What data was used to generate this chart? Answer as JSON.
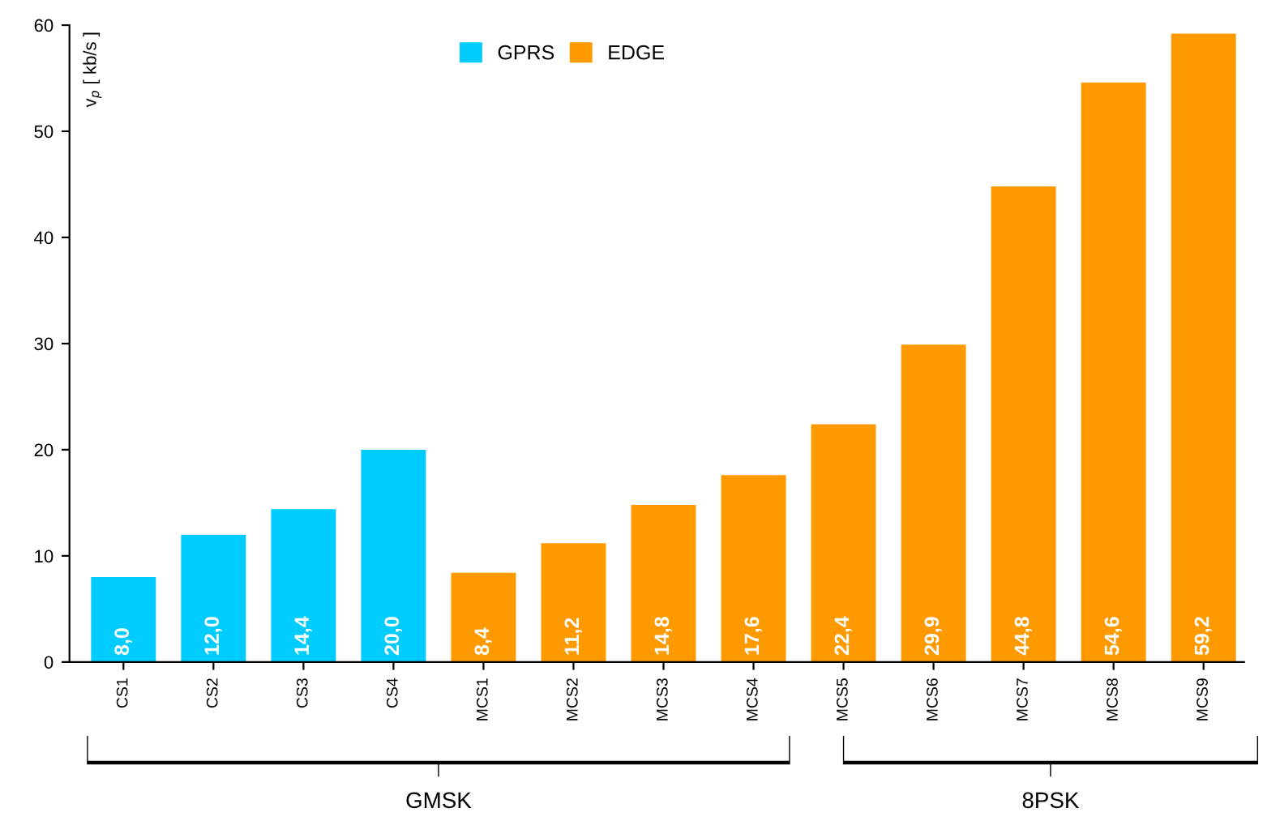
{
  "chart_data": {
    "type": "bar",
    "ylabel": "v$_{p}$ [ kb/s ]",
    "categories": [
      "CS1",
      "CS2",
      "CS3",
      "CS4",
      "MCS1",
      "MCS2",
      "MCS3",
      "MCS4",
      "MCS5",
      "MCS6",
      "MCS7",
      "MCS8",
      "MCS9"
    ],
    "series": [
      {
        "name": "GPRS",
        "color": "#00ccff",
        "values": [
          8.0,
          12.0,
          14.4,
          20.0,
          null,
          null,
          null,
          null,
          null,
          null,
          null,
          null,
          null
        ],
        "value_labels": [
          "8,0",
          "12,0",
          "14,4",
          "20,0",
          null,
          null,
          null,
          null,
          null,
          null,
          null,
          null,
          null
        ]
      },
      {
        "name": "EDGE",
        "color": "#ff9900",
        "values": [
          null,
          null,
          null,
          null,
          8.4,
          11.2,
          14.8,
          17.6,
          22.4,
          29.9,
          44.8,
          54.6,
          59.2
        ],
        "value_labels": [
          null,
          null,
          null,
          null,
          "8,4",
          "11,2",
          "14,8",
          "17,6",
          "22,4",
          "29,9",
          "44,8",
          "54,6",
          "59,2"
        ]
      }
    ],
    "ylim": [
      0,
      60
    ],
    "yticks": [
      0,
      10,
      20,
      30,
      40,
      50,
      60
    ],
    "grid": false,
    "legend": "top",
    "annotations": [
      "GMSK",
      "8PSK"
    ]
  }
}
